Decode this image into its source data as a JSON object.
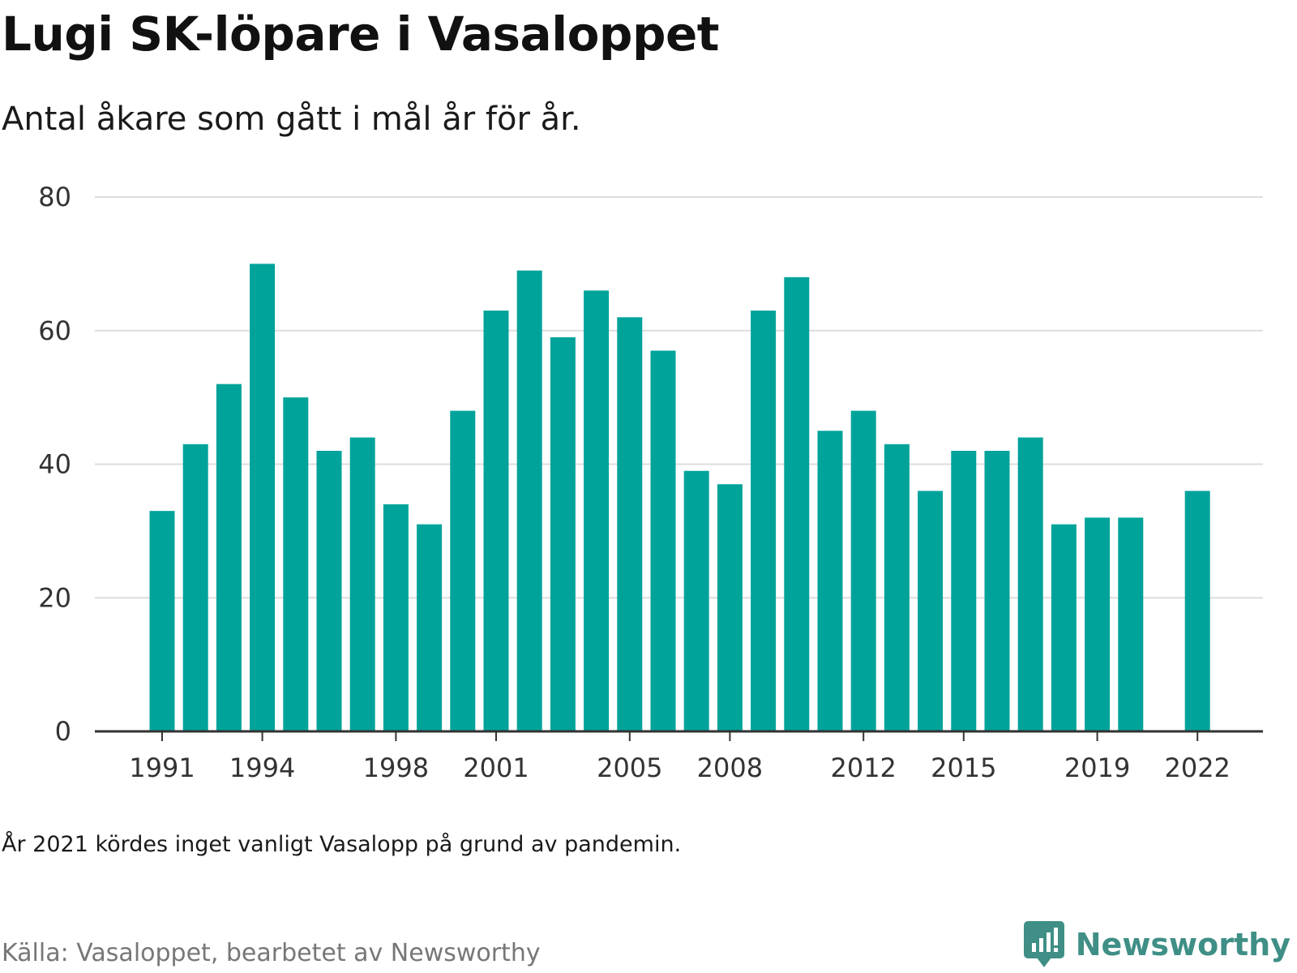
{
  "header": {
    "title": "Lugi SK-löpare i Vasaloppet",
    "subtitle": "Antal åkare som gått i mål år för år."
  },
  "footer": {
    "note": "År 2021 kördes inget vanligt Vasalopp på grund av pandemin.",
    "source": "Källa: Vasaloppet, bearbetet av Newsworthy",
    "brand": "Newsworthy",
    "brand_icon": "bar-chart-speech-bubble-icon"
  },
  "colors": {
    "bar": "#00a39a",
    "grid": "#dddddd",
    "axis": "#333333",
    "brand": "#3f8f86"
  },
  "chart_data": {
    "type": "bar",
    "title": "Lugi SK-löpare i Vasaloppet",
    "subtitle": "Antal åkare som gått i mål år för år.",
    "xlabel": "",
    "ylabel": "",
    "ylim": [
      0,
      80
    ],
    "yticks": [
      0,
      20,
      40,
      60,
      80
    ],
    "xticks": [
      1991,
      1994,
      1998,
      2001,
      2005,
      2008,
      2012,
      2015,
      2019,
      2022
    ],
    "grid": true,
    "categories": [
      1991,
      1992,
      1993,
      1994,
      1995,
      1996,
      1997,
      1998,
      1999,
      2000,
      2001,
      2002,
      2003,
      2004,
      2005,
      2006,
      2007,
      2008,
      2009,
      2010,
      2011,
      2012,
      2013,
      2014,
      2015,
      2016,
      2017,
      2018,
      2019,
      2020,
      2021,
      2022
    ],
    "values": [
      33,
      43,
      52,
      70,
      50,
      42,
      44,
      34,
      31,
      48,
      63,
      69,
      59,
      66,
      62,
      57,
      39,
      37,
      63,
      68,
      45,
      48,
      43,
      36,
      42,
      42,
      44,
      31,
      32,
      32,
      null,
      36
    ]
  }
}
